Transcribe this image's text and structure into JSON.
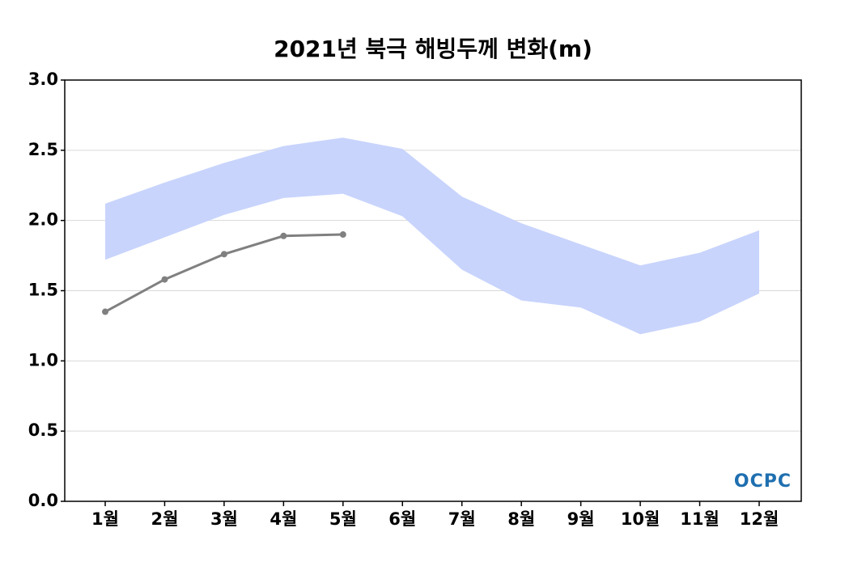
{
  "chart_data": {
    "type": "line",
    "title": "2021년 북극 해빙두께 변화(m)",
    "categories": [
      "1월",
      "2월",
      "3월",
      "4월",
      "5월",
      "6월",
      "7월",
      "8월",
      "9월",
      "10월",
      "11월",
      "12월"
    ],
    "band": {
      "color": "#c8d4fc",
      "upper": [
        2.12,
        2.27,
        2.41,
        2.53,
        2.59,
        2.51,
        2.17,
        1.98,
        1.83,
        1.68,
        1.77,
        1.93
      ],
      "lower": [
        1.72,
        1.88,
        2.04,
        2.16,
        2.19,
        2.03,
        1.65,
        1.43,
        1.38,
        1.19,
        1.28,
        1.48
      ]
    },
    "series": [
      {
        "color": "#808080",
        "values": [
          1.35,
          1.58,
          1.76,
          1.89,
          1.9,
          null,
          null,
          null,
          null,
          null,
          null,
          null
        ]
      }
    ],
    "ylim": [
      0,
      3
    ],
    "yticks": [
      {
        "value": 0,
        "label": "0.0"
      },
      {
        "value": 0.5,
        "label": "0.5"
      },
      {
        "value": 1,
        "label": "1.0"
      },
      {
        "value": 1.5,
        "label": "1.5"
      },
      {
        "value": 2,
        "label": "2.0"
      },
      {
        "value": 2.5,
        "label": "2.5"
      },
      {
        "value": 3,
        "label": "3.0"
      }
    ],
    "grid": true,
    "logo": "OCPC"
  }
}
